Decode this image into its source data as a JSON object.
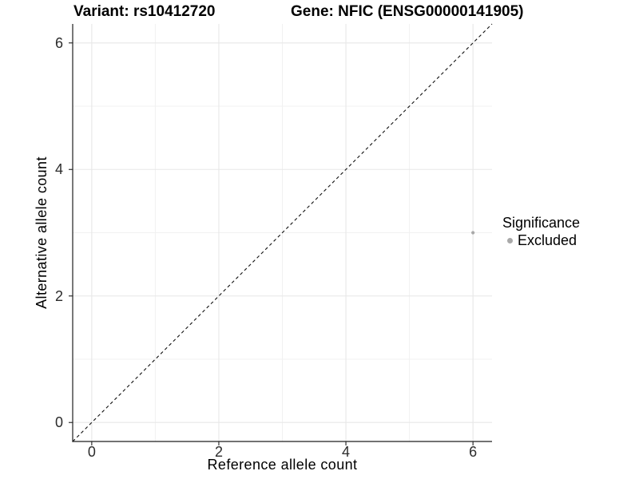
{
  "header": {
    "variant_title": "Variant: rs10412720",
    "gene_title": "Gene: NFIC (ENSG00000141905)"
  },
  "chart_data": {
    "type": "scatter",
    "title": "Variant: rs10412720    Gene: NFIC (ENSG00000141905)",
    "xlabel": "Reference allele count",
    "ylabel": "Alternative allele count",
    "xlim": [
      -0.3,
      6.3
    ],
    "ylim": [
      -0.3,
      6.3
    ],
    "x_ticks": [
      0,
      2,
      4,
      6
    ],
    "y_ticks": [
      0,
      2,
      4,
      6
    ],
    "x_minor_ticks": [
      1,
      3,
      5
    ],
    "y_minor_ticks": [
      1,
      3,
      5
    ],
    "grid": "major and minor gridlines, white panel",
    "identity_line": {
      "show": true,
      "style": "dashed",
      "equation": "y = x"
    },
    "series": [
      {
        "name": "Excluded",
        "color": "#a9a9a9",
        "points": [
          {
            "x": 6,
            "y": 3
          }
        ]
      }
    ],
    "legend": {
      "title": "Significance",
      "position": "right",
      "entries": [
        {
          "label": "Excluded",
          "color": "#a9a9a9"
        }
      ]
    }
  },
  "colors": {
    "background": "#ffffff",
    "axis": "#1f1f1f",
    "grid_major": "#e7e7e7",
    "grid_minor": "#f1f1f1",
    "identity_line": "#111111",
    "point": "#a9a9a9",
    "tick_label": "#2b2b2b"
  }
}
